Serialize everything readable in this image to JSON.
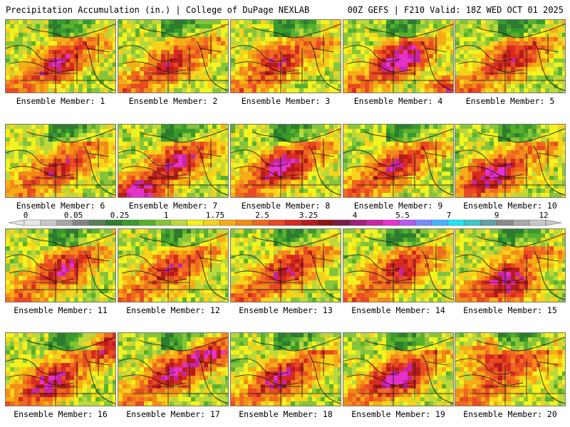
{
  "header": {
    "left": "Precipitation Accumulation (in.) | College of DuPage NEXLAB",
    "right": "00Z GEFS | F210 Valid: 18Z WED OCT 01 2025"
  },
  "panels": [
    {
      "label": "Ensemble Member: 1"
    },
    {
      "label": "Ensemble Member: 2"
    },
    {
      "label": "Ensemble Member: 3"
    },
    {
      "label": "Ensemble Member: 4"
    },
    {
      "label": "Ensemble Member: 5"
    },
    {
      "label": "Ensemble Member: 6"
    },
    {
      "label": "Ensemble Member: 7"
    },
    {
      "label": "Ensemble Member: 8"
    },
    {
      "label": "Ensemble Member: 9"
    },
    {
      "label": "Ensemble Member: 10"
    },
    {
      "label": "Ensemble Member: 11"
    },
    {
      "label": "Ensemble Member: 12"
    },
    {
      "label": "Ensemble Member: 13"
    },
    {
      "label": "Ensemble Member: 14"
    },
    {
      "label": "Ensemble Member: 15"
    },
    {
      "label": "Ensemble Member: 16"
    },
    {
      "label": "Ensemble Member: 17"
    },
    {
      "label": "Ensemble Member: 18"
    },
    {
      "label": "Ensemble Member: 19"
    },
    {
      "label": "Ensemble Member: 20"
    }
  ],
  "legend": {
    "ticks": [
      "0",
      "0.05",
      "0.25",
      "1",
      "1.75",
      "2.5",
      "3.25",
      "4",
      "5.5",
      "7",
      "9",
      "12"
    ],
    "colors": [
      "#e6e6e6",
      "#c8c8c8",
      "#a6a6a6",
      "#828282",
      "#5a7e5a",
      "#2e7d2e",
      "#3a9a2a",
      "#58b02e",
      "#86c53a",
      "#bcd83a",
      "#f2f21e",
      "#f7d21a",
      "#f5ac17",
      "#f28b18",
      "#ee6a1f",
      "#e84a22",
      "#d72a20",
      "#b51c1b",
      "#8c1414",
      "#7a1a4a",
      "#a0207a",
      "#c824a6",
      "#e632cc",
      "#b45af0",
      "#7a8cff",
      "#46b4ff",
      "#1ee6f0",
      "#3cc8c8",
      "#64a0a0",
      "#8a8a8a",
      "#a8a8a8",
      "#c8c8c8"
    ]
  }
}
